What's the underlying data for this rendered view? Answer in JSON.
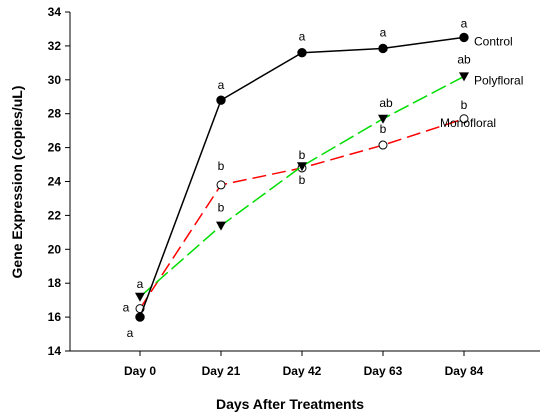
{
  "chart_data": {
    "type": "line",
    "xlabel": "Days After Treatments",
    "ylabel": "Gene Expression (copies/uL)",
    "categories": [
      "Day 0",
      "Day 21",
      "Day 42",
      "Day 63",
      "Day 84"
    ],
    "ylim": [
      14,
      34
    ],
    "yticks": [
      14,
      16,
      18,
      20,
      22,
      24,
      26,
      28,
      30,
      32,
      34
    ],
    "grid": false,
    "series": [
      {
        "name": "Control",
        "color": "#000000",
        "line_style": "solid",
        "marker": "filled-circle",
        "values": [
          16.0,
          28.8,
          31.6,
          31.85,
          32.5
        ],
        "significance": [
          "a",
          "a",
          "a",
          "a",
          "a"
        ]
      },
      {
        "name": "Polyfloral",
        "color": "#00dd00",
        "line_style": "dashed",
        "marker": "filled-triangle-down",
        "values": [
          17.2,
          21.4,
          24.9,
          27.7,
          30.2
        ],
        "significance": [
          "a",
          "b",
          "b",
          "ab",
          "ab"
        ]
      },
      {
        "name": "Monofloral",
        "color": "#ff0000",
        "line_style": "dashed",
        "marker": "open-circle",
        "values": [
          16.5,
          23.8,
          24.8,
          26.15,
          27.7
        ],
        "significance": [
          "a",
          "b",
          "b",
          "b",
          "b"
        ]
      }
    ]
  }
}
